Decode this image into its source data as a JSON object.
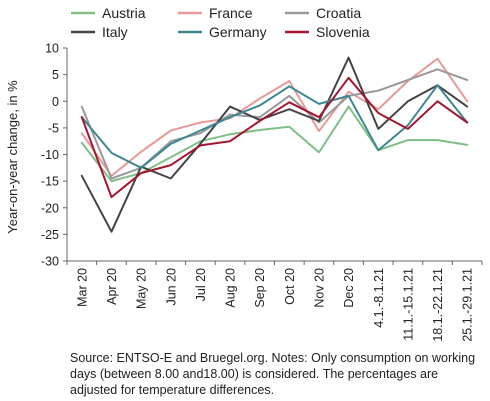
{
  "chart_data": {
    "type": "line",
    "title": "",
    "xlabel": "",
    "ylabel": "Year-on-year change, in %",
    "ylim": [
      -30,
      10
    ],
    "yticks": [
      10,
      5,
      0,
      -5,
      -10,
      -15,
      -20,
      -25,
      -30
    ],
    "grid": false,
    "legend_position": "top",
    "categories": [
      "Mar 20",
      "Apr 20",
      "May 20",
      "Jun 20",
      "Jul 20",
      "Aug 20",
      "Sep 20",
      "Oct 20",
      "Nov 20",
      "Dec 20",
      "4.1.-8.1.21",
      "11.1.-15.1.21",
      "18.1.-22.1.21",
      "25.1.-29.1.21"
    ],
    "series": [
      {
        "name": "Austria",
        "color": "#7fbf86",
        "values": [
          -7.8,
          -15,
          -13.5,
          -10.5,
          -7.5,
          -6.2,
          -5.4,
          -4.8,
          -9.6,
          -1,
          -9.2,
          -7.3,
          -7.3,
          -8.2
        ]
      },
      {
        "name": "France",
        "color": "#e79a97",
        "values": [
          -6,
          -14,
          -9.5,
          -5.5,
          -4,
          -3.2,
          0.5,
          3.8,
          -5.6,
          1.8,
          -1.5,
          3.8,
          8,
          0
        ]
      },
      {
        "name": "Croatia",
        "color": "#999999",
        "values": [
          -1,
          -14.5,
          -12.5,
          -7.5,
          -6,
          -2.5,
          -3,
          1,
          -4,
          1,
          2,
          4,
          6,
          4
        ]
      },
      {
        "name": "Italy",
        "color": "#444444",
        "values": [
          -14,
          -24.5,
          -12.3,
          -14.5,
          -8,
          -1,
          -3.5,
          -1.5,
          -3.7,
          8.2,
          -5.2,
          0,
          3,
          -1
        ]
      },
      {
        "name": "Germany",
        "color": "#3e8793",
        "values": [
          -3,
          -9.7,
          -12.5,
          -8,
          -5.5,
          -3,
          -0.8,
          2.8,
          -0.5,
          1,
          -9.2,
          -4.5,
          3,
          -4
        ]
      },
      {
        "name": "Slovenia",
        "color": "#a3162f",
        "values": [
          -3,
          -18,
          -13.5,
          -12,
          -8.3,
          -7.5,
          -3.7,
          -0.2,
          -3,
          4.4,
          -2.2,
          -5.2,
          0,
          -4
        ]
      }
    ]
  },
  "note": "Source: ENTSO-E and Bruegel.org. Notes: Only consumption on working days (between 8.00 and18.00) is considered. The percentages are adjusted for temperature differences."
}
